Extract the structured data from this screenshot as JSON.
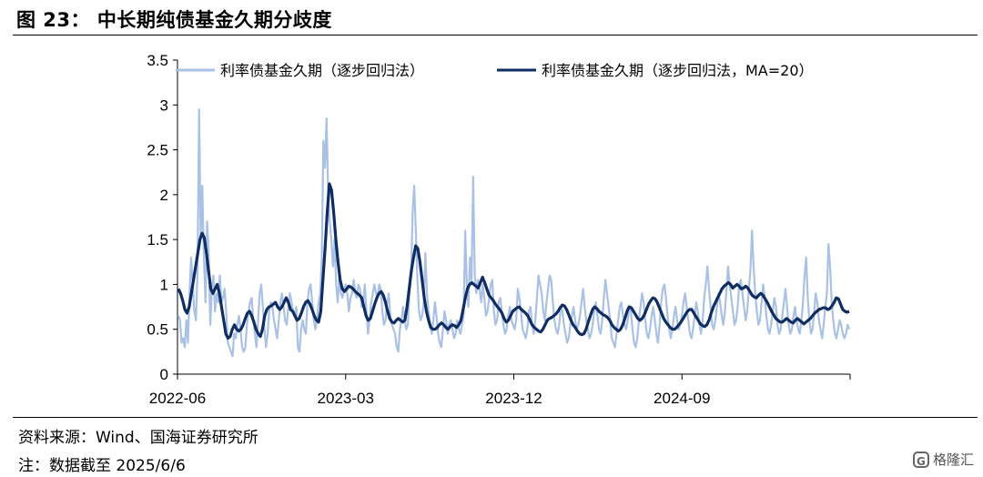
{
  "header": {
    "title": "图 23：  中长期纯债基金久期分歧度"
  },
  "footer": {
    "source": "资料来源：Wind、国海证券研究所",
    "note": "注：数据截至 2025/6/6",
    "watermark": "格隆汇",
    "watermark_icon": "G"
  },
  "chart_data": {
    "type": "line",
    "title": "",
    "xlabel": "",
    "ylabel": "",
    "ylim": [
      0,
      3.5
    ],
    "yticks": [
      "0",
      "0.5",
      "1",
      "1.5",
      "2",
      "2.5",
      "3",
      "3.5"
    ],
    "xticks": [
      "2022-06",
      "2023-03",
      "2023-12",
      "2024-09"
    ],
    "grid": false,
    "legend_placement": "top",
    "x_start": "2022-06",
    "x_end": "2025-06",
    "series": [
      {
        "name": "利率债基金久期（逐步回归法）",
        "color": "#a9c1e4",
        "values": [
          0.65,
          0.6,
          0.35,
          0.4,
          0.3,
          0.6,
          0.35,
          0.9,
          1.3,
          1.0,
          0.7,
          0.6,
          1.15,
          2.95,
          1.5,
          2.1,
          1.3,
          0.8,
          1.7,
          1.35,
          0.55,
          0.95,
          1.1,
          0.7,
          0.9,
          0.8,
          1.1,
          0.8,
          0.85,
          0.95,
          0.7,
          0.35,
          0.3,
          0.25,
          0.2,
          0.45,
          0.4,
          0.55,
          0.65,
          0.5,
          0.3,
          0.25,
          0.3,
          0.55,
          0.7,
          0.8,
          0.85,
          0.6,
          0.45,
          0.3,
          0.6,
          0.9,
          1.0,
          0.75,
          0.5,
          0.3,
          0.45,
          0.7,
          0.8,
          0.75,
          0.6,
          0.5,
          0.4,
          0.6,
          0.8,
          0.9,
          0.75,
          0.6,
          0.55,
          0.75,
          0.9,
          0.8,
          0.7,
          0.65,
          0.75,
          0.3,
          0.25,
          0.5,
          0.6,
          0.5,
          0.45,
          0.8,
          0.95,
          1.0,
          0.8,
          0.6,
          0.5,
          0.6,
          0.8,
          0.9,
          1.3,
          2.6,
          2.3,
          2.85,
          2.0,
          1.7,
          1.5,
          1.2,
          1.5,
          1.0,
          0.8,
          1.1,
          0.9,
          0.85,
          0.95,
          1.0,
          0.9,
          0.7,
          0.85,
          0.9,
          1.05,
          0.9,
          0.85,
          1.0,
          0.95,
          0.75,
          0.8,
          1.0,
          0.7,
          0.45,
          0.6,
          0.8,
          0.9,
          1.0,
          0.9,
          0.85,
          1.0,
          0.95,
          0.7,
          0.55,
          0.6,
          0.8,
          0.9,
          0.65,
          0.55,
          0.5,
          0.45,
          0.3,
          0.25,
          0.5,
          0.6,
          0.75,
          0.6,
          0.5,
          0.55,
          0.9,
          1.1,
          1.8,
          2.1,
          1.6,
          1.05,
          0.7,
          0.6,
          0.65,
          0.8,
          1.35,
          0.9,
          0.7,
          0.55,
          0.45,
          0.6,
          0.8,
          0.65,
          0.45,
          0.35,
          0.3,
          0.5,
          0.7,
          0.6,
          0.45,
          0.55,
          0.6,
          0.5,
          0.4,
          0.45,
          0.6,
          0.5,
          0.45,
          0.55,
          0.65,
          1.6,
          1.0,
          0.75,
          1.3,
          1.05,
          2.2,
          1.1,
          0.9,
          1.05,
          0.95,
          0.8,
          1.0,
          0.85,
          0.65,
          0.7,
          0.85,
          1.0,
          1.05,
          0.7,
          0.55,
          0.6,
          0.8,
          0.85,
          0.7,
          0.55,
          0.45,
          0.5,
          0.65,
          0.75,
          0.6,
          0.55,
          0.5,
          0.6,
          0.95,
          0.85,
          0.7,
          0.5,
          0.45,
          0.4,
          0.5,
          0.7,
          0.75,
          0.55,
          0.45,
          0.6,
          0.85,
          1.1,
          1.0,
          0.9,
          0.7,
          0.6,
          0.8,
          0.95,
          1.1,
          1.05,
          0.8,
          0.6,
          0.5,
          0.45,
          0.55,
          0.75,
          0.7,
          0.55,
          0.45,
          0.35,
          0.4,
          0.55,
          0.65,
          0.75,
          0.6,
          0.5,
          0.55,
          0.65,
          0.8,
          0.95,
          0.75,
          0.6,
          0.5,
          0.4,
          0.45,
          0.55,
          0.7,
          0.8,
          0.65,
          0.5,
          0.45,
          0.6,
          0.85,
          1.05,
          0.9,
          0.75,
          0.6,
          0.4,
          0.35,
          0.3,
          0.45,
          0.6,
          0.75,
          0.8,
          0.65,
          0.55,
          0.5,
          0.6,
          0.75,
          0.7,
          0.5,
          0.35,
          0.3,
          0.4,
          0.6,
          0.75,
          0.9,
          0.8,
          0.6,
          0.45,
          0.4,
          0.5,
          0.65,
          0.75,
          0.6,
          0.45,
          0.35,
          0.55,
          0.8,
          0.95,
          1.0,
          0.85,
          0.65,
          0.5,
          0.4,
          0.5,
          0.65,
          0.75,
          0.6,
          0.5,
          0.55,
          0.65,
          0.8,
          0.9,
          0.75,
          0.6,
          0.45,
          0.4,
          0.5,
          0.65,
          0.8,
          0.7,
          0.55,
          0.45,
          0.6,
          0.85,
          1.0,
          1.2,
          0.95,
          0.75,
          0.55,
          0.5,
          0.6,
          0.75,
          0.9,
          0.8,
          0.65,
          0.55,
          0.7,
          0.95,
          1.2,
          1.0,
          0.85,
          0.7,
          0.55,
          0.6,
          0.75,
          1.0,
          1.05,
          0.9,
          0.75,
          0.6,
          0.7,
          0.95,
          1.15,
          1.6,
          1.2,
          0.9,
          0.7,
          0.55,
          0.6,
          0.8,
          1.0,
          0.85,
          0.65,
          0.5,
          0.45,
          0.55,
          0.7,
          0.85,
          0.75,
          0.55,
          0.45,
          0.5,
          0.65,
          0.8,
          0.95,
          0.75,
          0.55,
          0.45,
          0.5,
          0.65,
          0.75,
          0.6,
          0.5,
          0.45,
          0.6,
          0.8,
          1.1,
          1.3,
          0.85,
          0.6,
          0.45,
          0.5,
          0.7,
          0.9,
          0.8,
          0.6,
          0.5,
          0.4,
          0.55,
          0.75,
          0.9,
          1.45,
          1.2,
          0.8,
          0.6,
          0.45,
          0.4,
          0.5,
          0.6,
          0.55,
          0.45,
          0.4,
          0.45,
          0.55,
          0.5
        ]
      },
      {
        "name": "利率债基金久期（逐步回归法，MA=20）",
        "color": "#0f2c63",
        "values": [
          0.95,
          0.9,
          0.82,
          0.72,
          0.68,
          0.75,
          0.9,
          1.05,
          1.2,
          1.35,
          1.5,
          1.57,
          1.52,
          1.35,
          1.15,
          0.95,
          0.9,
          0.95,
          1.0,
          0.9,
          0.75,
          0.6,
          0.45,
          0.4,
          0.42,
          0.5,
          0.55,
          0.5,
          0.48,
          0.5,
          0.55,
          0.62,
          0.68,
          0.7,
          0.65,
          0.58,
          0.5,
          0.45,
          0.42,
          0.5,
          0.65,
          0.72,
          0.75,
          0.76,
          0.78,
          0.8,
          0.75,
          0.72,
          0.75,
          0.8,
          0.85,
          0.8,
          0.72,
          0.7,
          0.65,
          0.6,
          0.62,
          0.68,
          0.75,
          0.8,
          0.82,
          0.78,
          0.72,
          0.65,
          0.6,
          0.58,
          0.7,
          1.05,
          1.4,
          1.8,
          2.12,
          2.05,
          1.8,
          1.5,
          1.25,
          1.05,
          0.95,
          0.92,
          0.95,
          0.98,
          0.97,
          0.95,
          0.92,
          0.9,
          0.88,
          0.85,
          0.75,
          0.65,
          0.6,
          0.62,
          0.7,
          0.78,
          0.85,
          0.9,
          0.92,
          0.88,
          0.8,
          0.7,
          0.62,
          0.58,
          0.57,
          0.6,
          0.62,
          0.6,
          0.58,
          0.6,
          0.75,
          0.95,
          1.15,
          1.3,
          1.43,
          1.4,
          1.25,
          1.05,
          0.85,
          0.7,
          0.6,
          0.52,
          0.5,
          0.5,
          0.52,
          0.55,
          0.57,
          0.55,
          0.52,
          0.5,
          0.53,
          0.55,
          0.54,
          0.52,
          0.55,
          0.6,
          0.72,
          0.85,
          0.95,
          1.0,
          1.02,
          1.0,
          0.98,
          0.96,
          1.02,
          1.08,
          1.02,
          0.95,
          0.88,
          0.85,
          0.82,
          0.78,
          0.75,
          0.72,
          0.68,
          0.62,
          0.58,
          0.6,
          0.65,
          0.7,
          0.72,
          0.74,
          0.75,
          0.72,
          0.7,
          0.68,
          0.65,
          0.6,
          0.55,
          0.52,
          0.5,
          0.48,
          0.47,
          0.5,
          0.55,
          0.6,
          0.62,
          0.63,
          0.65,
          0.67,
          0.7,
          0.74,
          0.77,
          0.76,
          0.72,
          0.66,
          0.6,
          0.55,
          0.52,
          0.48,
          0.45,
          0.44,
          0.45,
          0.5,
          0.58,
          0.65,
          0.72,
          0.75,
          0.73,
          0.7,
          0.68,
          0.66,
          0.65,
          0.63,
          0.6,
          0.55,
          0.52,
          0.5,
          0.48,
          0.5,
          0.55,
          0.62,
          0.7,
          0.75,
          0.74,
          0.7,
          0.66,
          0.62,
          0.6,
          0.62,
          0.66,
          0.72,
          0.78,
          0.82,
          0.85,
          0.84,
          0.8,
          0.74,
          0.68,
          0.62,
          0.58,
          0.55,
          0.52,
          0.5,
          0.5,
          0.52,
          0.55,
          0.58,
          0.62,
          0.66,
          0.7,
          0.72,
          0.72,
          0.68,
          0.64,
          0.6,
          0.56,
          0.54,
          0.53,
          0.55,
          0.6,
          0.68,
          0.75,
          0.8,
          0.85,
          0.9,
          0.95,
          0.98,
          1.0,
          1.02,
          1.0,
          0.96,
          0.98,
          1.0,
          0.98,
          0.95,
          0.96,
          0.98,
          0.96,
          0.92,
          0.88,
          0.86,
          0.85,
          0.88,
          0.9,
          0.88,
          0.84,
          0.8,
          0.75,
          0.7,
          0.66,
          0.62,
          0.6,
          0.58,
          0.58,
          0.6,
          0.62,
          0.6,
          0.58,
          0.57,
          0.6,
          0.62,
          0.6,
          0.58,
          0.56,
          0.58,
          0.6,
          0.62,
          0.65,
          0.68,
          0.7,
          0.72,
          0.73,
          0.74,
          0.74,
          0.72,
          0.73,
          0.76,
          0.8,
          0.85,
          0.84,
          0.78,
          0.72,
          0.7,
          0.69,
          0.7
        ]
      }
    ]
  }
}
